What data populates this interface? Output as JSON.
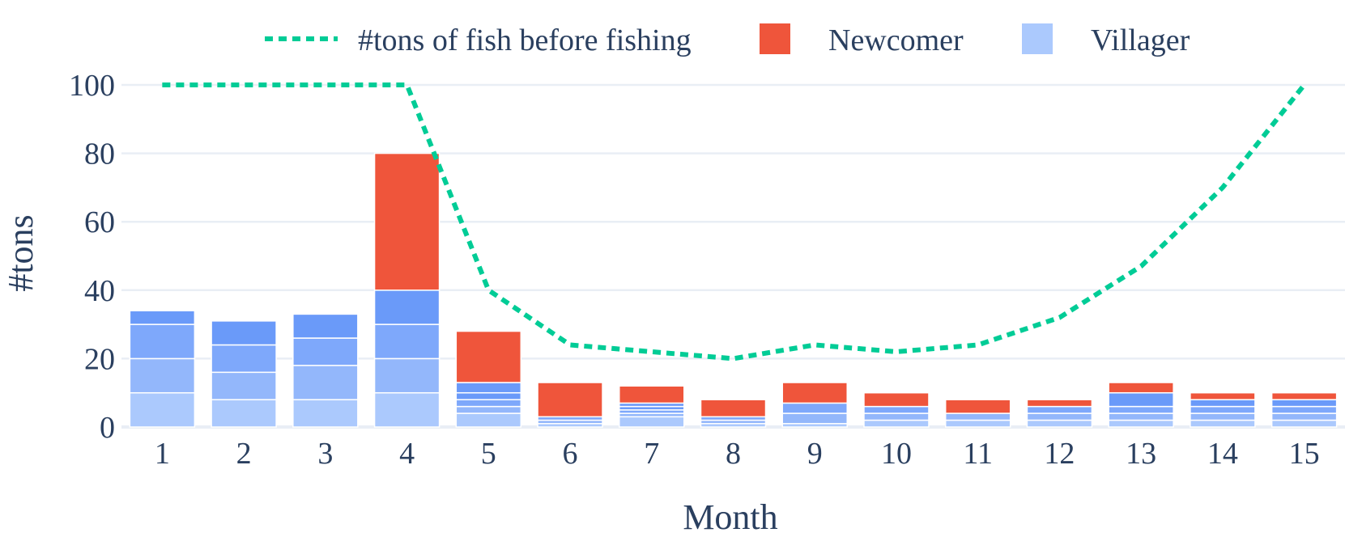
{
  "colors": {
    "newcomer": "#ef553b",
    "villager_shades": [
      "#abc9fd",
      "#93b7fb",
      "#7ea8fb",
      "#6a9af9"
    ],
    "line": "#00cc96",
    "text": "#2a3f5f",
    "grid": "#e9eef5"
  },
  "chart_data": {
    "type": "bar",
    "barmode": "stack",
    "x": [
      1,
      2,
      3,
      4,
      5,
      6,
      7,
      8,
      9,
      10,
      11,
      12,
      13,
      14,
      15
    ],
    "xlabel": "Month",
    "ylabel": "#tons",
    "ylim": [
      0,
      100
    ],
    "yticks": [
      0,
      20,
      40,
      60,
      80,
      100
    ],
    "grid": true,
    "legend_position": "top",
    "legend": [
      "#tons of fish before fishing",
      "Newcomer",
      "Villager"
    ],
    "villager_segments": [
      [
        10,
        10,
        10,
        4
      ],
      [
        8,
        8,
        8,
        7
      ],
      [
        8,
        10,
        8,
        7
      ],
      [
        10,
        10,
        10,
        10
      ],
      [
        4,
        2,
        2,
        2,
        3
      ],
      [
        1,
        1,
        1
      ],
      [
        3,
        1,
        1,
        1,
        1
      ],
      [
        1,
        1,
        1
      ],
      [
        1,
        3,
        3
      ],
      [
        2,
        2,
        2
      ],
      [
        2,
        2
      ],
      [
        2,
        2,
        2
      ],
      [
        2,
        2,
        2,
        4
      ],
      [
        2,
        2,
        2,
        2
      ],
      [
        2,
        2,
        2,
        2
      ]
    ],
    "newcomer": [
      0,
      0,
      0,
      40,
      15,
      10,
      5,
      5,
      6,
      4,
      4,
      2,
      3,
      2,
      2
    ],
    "series": [
      {
        "name": "#tons of fish before fishing",
        "type": "line",
        "style": "dotted",
        "values": [
          100,
          100,
          100,
          100,
          40,
          24,
          22,
          20,
          24,
          22,
          24,
          32,
          47,
          70,
          100
        ]
      },
      {
        "name": "Newcomer",
        "type": "bar",
        "values": [
          0,
          0,
          0,
          40,
          15,
          10,
          5,
          5,
          6,
          4,
          4,
          2,
          3,
          2,
          2
        ]
      },
      {
        "name": "Villager",
        "type": "bar",
        "values": [
          34,
          31,
          33,
          40,
          13,
          3,
          7,
          3,
          7,
          6,
          4,
          6,
          10,
          8,
          8
        ]
      }
    ]
  }
}
